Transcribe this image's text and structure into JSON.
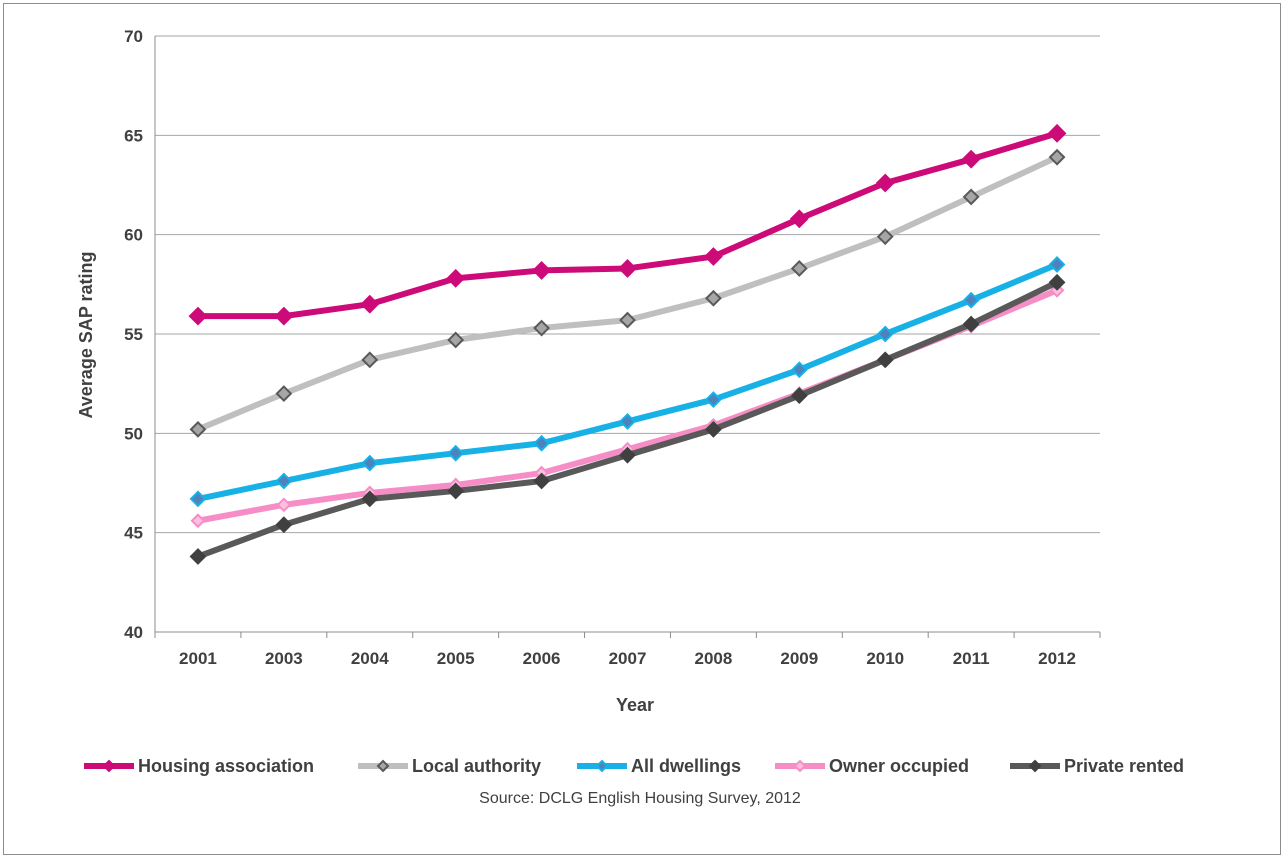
{
  "chart_data": {
    "type": "line",
    "xlabel": "Year",
    "ylabel": "Average SAP rating",
    "ylim": [
      40,
      70
    ],
    "yticks": [
      40,
      45,
      50,
      55,
      60,
      65,
      70
    ],
    "categories": [
      "2001",
      "2003",
      "2004",
      "2005",
      "2006",
      "2007",
      "2008",
      "2009",
      "2010",
      "2011",
      "2012"
    ],
    "grid": "horizontal",
    "legend_position": "bottom",
    "series": [
      {
        "name": "Housing association",
        "color": "#cc0a78",
        "marker": "diamond-filled",
        "values": [
          55.9,
          55.9,
          56.5,
          57.8,
          58.2,
          58.3,
          58.9,
          60.8,
          62.6,
          63.8,
          65.1
        ]
      },
      {
        "name": "Local authority",
        "color": "#bfbfbf",
        "marker": "diamond-grey",
        "values": [
          50.2,
          52.0,
          53.7,
          54.7,
          55.3,
          55.7,
          56.8,
          58.3,
          59.9,
          61.9,
          63.9
        ]
      },
      {
        "name": "All dwellings",
        "color": "#17b1e5",
        "marker": "diamond-blue",
        "values": [
          46.7,
          47.6,
          48.5,
          49.0,
          49.5,
          50.6,
          51.7,
          53.2,
          55.0,
          56.7,
          58.5
        ]
      },
      {
        "name": "Owner occupied",
        "color": "#f78dc6",
        "marker": "diamond-pink",
        "values": [
          45.6,
          46.4,
          47.0,
          47.4,
          48.0,
          49.2,
          50.4,
          52.0,
          53.7,
          55.4,
          57.2
        ]
      },
      {
        "name": "Private rented",
        "color": "#595959",
        "marker": "diamond-dark",
        "values": [
          43.8,
          45.4,
          46.7,
          47.1,
          47.6,
          48.9,
          50.2,
          51.9,
          53.7,
          55.5,
          57.6
        ]
      }
    ]
  },
  "source_note": "Source: DCLG English Housing Survey, 2012"
}
